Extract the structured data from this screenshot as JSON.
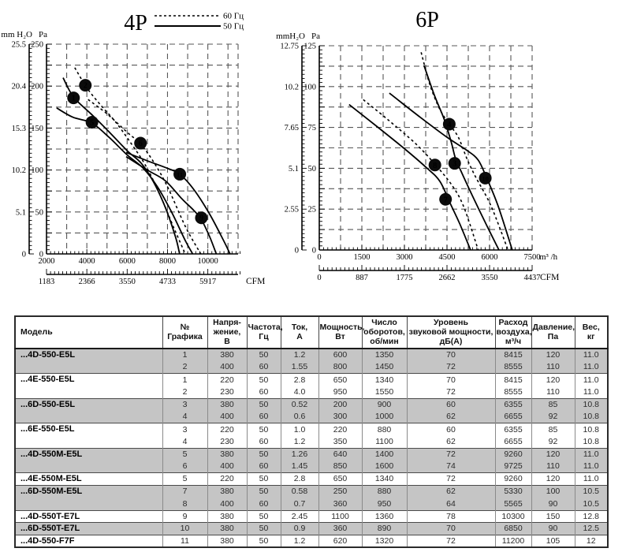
{
  "chart_data": [
    {
      "id": "4p",
      "type": "line",
      "title": "4P",
      "legend": {
        "dashed_label": "60 Гц",
        "solid_label": "50 Гц"
      },
      "units": {
        "left": "mm H₂O",
        "right": "Pa",
        "flow": "",
        "cfm": "CFM"
      },
      "x": {
        "min": 2000,
        "max": 11500,
        "grid": 1000,
        "minor": 200,
        "labels": [
          2000,
          4000,
          6000,
          8000,
          10000
        ]
      },
      "y": {
        "min": 0,
        "max": 250,
        "grid": 25,
        "minor": 5,
        "pa_labels": [
          "250",
          "200",
          "150",
          "100",
          "50",
          "0"
        ],
        "mm_labels": [
          "25.5",
          "20.4",
          "15.3",
          "10.2",
          "5.1",
          "0"
        ]
      },
      "cfm_at": [
        2000,
        4000,
        6000,
        8000,
        10000
      ],
      "cfm_labels": [
        "1183",
        "2366",
        "3550",
        "4733",
        "5917"
      ],
      "series": [
        {
          "graph": "1",
          "hz": "50",
          "style": "solid",
          "points": [
            [
              2820,
              210
            ],
            [
              3340,
              187
            ],
            [
              4200,
              167
            ],
            [
              5000,
              148
            ],
            [
              6000,
              123
            ],
            [
              6700,
              108
            ],
            [
              7300,
              86
            ],
            [
              7900,
              55
            ],
            [
              8400,
              20
            ],
            [
              8600,
              0
            ]
          ]
        },
        {
          "graph": "2",
          "hz": "60",
          "style": "dashed",
          "points": [
            [
              3400,
              222
            ],
            [
              4000,
              198
            ],
            [
              4700,
              177
            ],
            [
              5400,
              158
            ],
            [
              6100,
              135
            ],
            [
              6900,
              106
            ],
            [
              7600,
              72
            ],
            [
              8300,
              32
            ],
            [
              8880,
              0
            ]
          ]
        },
        {
          "graph": "5",
          "hz": "50",
          "style": "solid",
          "points": [
            [
              2500,
              174
            ],
            [
              3300,
              163
            ],
            [
              4250,
              156
            ],
            [
              5100,
              139
            ],
            [
              6000,
              118
            ],
            [
              6800,
              102
            ],
            [
              7500,
              80
            ],
            [
              8200,
              50
            ],
            [
              8900,
              15
            ],
            [
              9250,
              0
            ]
          ]
        },
        {
          "graph": "6",
          "hz": "60",
          "style": "dashed",
          "points": [
            [
              4060,
              184
            ],
            [
              5000,
              167
            ],
            [
              6000,
              145
            ],
            [
              6660,
              131
            ],
            [
              7300,
              110
            ],
            [
              8000,
              80
            ],
            [
              8900,
              32
            ],
            [
              9650,
              0
            ]
          ]
        },
        {
          "graph": "9",
          "hz": "50",
          "style": "solid",
          "points": [
            [
              5950,
              116
            ],
            [
              7000,
              100
            ],
            [
              7900,
              87
            ],
            [
              8700,
              66
            ],
            [
              9300,
              52
            ],
            [
              9680,
              41
            ],
            [
              10100,
              20
            ],
            [
              10420,
              0
            ]
          ]
        },
        {
          "graph": "11",
          "hz": "50",
          "style": "solid",
          "points": [
            [
              5950,
              121
            ],
            [
              7000,
              111
            ],
            [
              8000,
              102
            ],
            [
              8610,
              95
            ],
            [
              9300,
              77
            ],
            [
              10100,
              47
            ],
            [
              10800,
              15
            ],
            [
              11100,
              0
            ]
          ]
        }
      ],
      "markers": [
        {
          "n": "1",
          "x": 3340,
          "y": 186
        },
        {
          "n": "2",
          "x": 3926,
          "y": 201
        },
        {
          "n": "5",
          "x": 4254,
          "y": 157
        },
        {
          "n": "6",
          "x": 6660,
          "y": 132
        },
        {
          "n": "11",
          "x": 8610,
          "y": 95
        },
        {
          "n": "9",
          "x": 9680,
          "y": 43
        }
      ]
    },
    {
      "id": "6p",
      "type": "line",
      "title": "6P",
      "legend": null,
      "units": {
        "left": "mmH₂O",
        "right": "Pa",
        "flow": "m³ /h",
        "cfm": "CFM"
      },
      "x": {
        "min": 0,
        "max": 7500,
        "grid": 750,
        "minor": 150,
        "labels": [
          0,
          1500,
          3000,
          4500,
          6000,
          7500
        ]
      },
      "y": {
        "min": 0,
        "max": 125,
        "grid": 12.5,
        "minor": 2.5,
        "pa_labels": [
          "125",
          "100",
          "75",
          "50",
          "25",
          "0"
        ],
        "mm_labels": [
          "12.75",
          "10.2",
          "7.65",
          "5.1",
          "2.55",
          "0"
        ]
      },
      "cfm_at": [
        0,
        1500,
        3000,
        4500,
        6000,
        7500
      ],
      "cfm_labels": [
        "0",
        "887",
        "1775",
        "2662",
        "3550",
        "4437"
      ],
      "series": [
        {
          "graph": "3",
          "hz": "50",
          "style": "solid",
          "points": [
            [
              3690,
              113
            ],
            [
              4050,
              95
            ],
            [
              4400,
              80
            ],
            [
              4650,
              66
            ],
            [
              4800,
              56
            ],
            [
              5000,
              48
            ],
            [
              5400,
              33
            ],
            [
              5900,
              15
            ],
            [
              6330,
              0
            ]
          ]
        },
        {
          "graph": "4",
          "hz": "60",
          "style": "dashed",
          "points": [
            [
              3590,
              121
            ],
            [
              3900,
              101
            ],
            [
              4250,
              86
            ],
            [
              4580,
              77
            ],
            [
              4900,
              69
            ],
            [
              5200,
              56
            ],
            [
              5500,
              45
            ],
            [
              6050,
              27
            ],
            [
              6650,
              0
            ]
          ]
        },
        {
          "graph": "7",
          "hz": "50",
          "style": "solid",
          "points": [
            [
              1050,
              89
            ],
            [
              2000,
              76
            ],
            [
              3000,
              62
            ],
            [
              3800,
              50
            ],
            [
              4250,
              42
            ],
            [
              4600,
              29
            ],
            [
              4950,
              16
            ],
            [
              5330,
              0
            ]
          ]
        },
        {
          "graph": "8",
          "hz": "60",
          "style": "dashed",
          "points": [
            [
              1550,
              92
            ],
            [
              2400,
              80
            ],
            [
              3400,
              65
            ],
            [
              4100,
              52
            ],
            [
              4700,
              39
            ],
            [
              5100,
              26
            ],
            [
              5600,
              0
            ]
          ]
        },
        {
          "graph": "10",
          "hz": "50",
          "style": "solid",
          "points": [
            [
              2470,
              96
            ],
            [
              3500,
              82
            ],
            [
              4500,
              69
            ],
            [
              5200,
              61
            ],
            [
              5600,
              55
            ],
            [
              5900,
              44
            ],
            [
              6300,
              27
            ],
            [
              6800,
              0
            ]
          ]
        }
      ],
      "markers": [
        {
          "n": "4",
          "x": 4580,
          "y": 77
        },
        {
          "n": "8",
          "x": 4075,
          "y": 52
        },
        {
          "n": "3",
          "x": 4770,
          "y": 53
        },
        {
          "n": "10",
          "x": 5850,
          "y": 44
        },
        {
          "n": "7",
          "x": 4450,
          "y": 31
        }
      ]
    }
  ],
  "table": {
    "headers": [
      "Модель",
      "№\nГрафика",
      "Напря-\nжение,\nВ",
      "Частота,\nГц",
      "Ток,\nА",
      "Мощность,\nВт",
      "Число\nоборотов,\nоб/мин",
      "Уровень\nзвуковой мощности,\nдБ(А)",
      "Расход\nвоздуха,\nм³/ч",
      "Давление,\nПа",
      "Вес,\nкг"
    ],
    "groups": [
      {
        "model": "...4D-550-E5L",
        "shaded": true,
        "rows": [
          [
            "1",
            "380",
            "50",
            "1.2",
            "600",
            "1350",
            "70",
            "8415",
            "120",
            "11.0"
          ],
          [
            "2",
            "400",
            "60",
            "1.55",
            "800",
            "1450",
            "72",
            "8555",
            "110",
            "11.0"
          ]
        ]
      },
      {
        "model": "...4E-550-E5L",
        "shaded": false,
        "rows": [
          [
            "1",
            "220",
            "50",
            "2.8",
            "650",
            "1340",
            "70",
            "8415",
            "120",
            "11.0"
          ],
          [
            "2",
            "230",
            "60",
            "4.0",
            "950",
            "1550",
            "72",
            "8555",
            "110",
            "11.0"
          ]
        ]
      },
      {
        "model": "...6D-550-E5L",
        "shaded": true,
        "rows": [
          [
            "3",
            "380",
            "50",
            "0.52",
            "200",
            "900",
            "60",
            "6355",
            "85",
            "10.8"
          ],
          [
            "4",
            "400",
            "60",
            "0.6",
            "300",
            "1000",
            "62",
            "6655",
            "92",
            "10.8"
          ]
        ]
      },
      {
        "model": "...6E-550-E5L",
        "shaded": false,
        "rows": [
          [
            "3",
            "220",
            "50",
            "1.0",
            "220",
            "880",
            "60",
            "6355",
            "85",
            "10.8"
          ],
          [
            "4",
            "230",
            "60",
            "1.2",
            "350",
            "1100",
            "62",
            "6655",
            "92",
            "10.8"
          ]
        ]
      },
      {
        "model": "...4D-550M-E5L",
        "shaded": true,
        "rows": [
          [
            "5",
            "380",
            "50",
            "1.26",
            "640",
            "1400",
            "72",
            "9260",
            "120",
            "11.0"
          ],
          [
            "6",
            "400",
            "60",
            "1.45",
            "850",
            "1600",
            "74",
            "9725",
            "110",
            "11.0"
          ]
        ]
      },
      {
        "model": "...4E-550M-E5L",
        "shaded": false,
        "rows": [
          [
            "5",
            "220",
            "50",
            "2.8",
            "650",
            "1340",
            "72",
            "9260",
            "120",
            "11.0"
          ]
        ]
      },
      {
        "model": "...6D-550M-E5L",
        "shaded": true,
        "rows": [
          [
            "7",
            "380",
            "50",
            "0.58",
            "250",
            "880",
            "62",
            "5330",
            "100",
            "10.5"
          ],
          [
            "8",
            "400",
            "60",
            "0.7",
            "360",
            "950",
            "64",
            "5565",
            "90",
            "10.5"
          ]
        ]
      },
      {
        "model": "...4D-550T-E7L",
        "shaded": false,
        "rows": [
          [
            "9",
            "380",
            "50",
            "2.45",
            "1100",
            "1360",
            "78",
            "10300",
            "150",
            "12.8"
          ]
        ]
      },
      {
        "model": "...6D-550T-E7L",
        "shaded": true,
        "rows": [
          [
            "10",
            "380",
            "50",
            "0.9",
            "360",
            "890",
            "70",
            "6850",
            "90",
            "12.5"
          ]
        ]
      },
      {
        "model": "...4D-550-F7F",
        "shaded": false,
        "rows": [
          [
            "11",
            "380",
            "50",
            "1.2",
            "620",
            "1320",
            "72",
            "11200",
            "105",
            "12"
          ]
        ]
      }
    ]
  }
}
